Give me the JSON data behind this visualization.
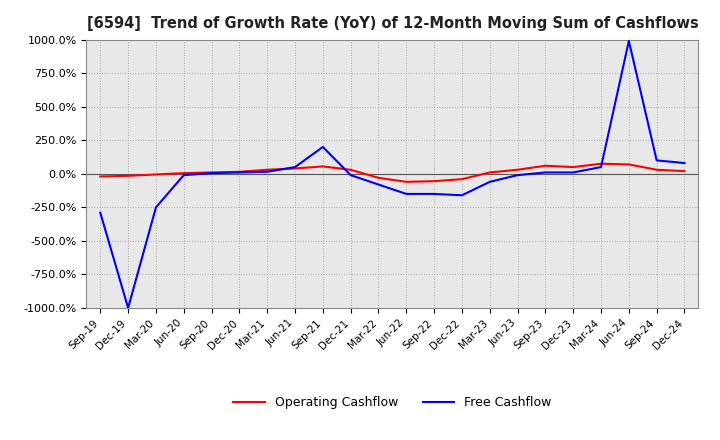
{
  "title": "[6594]  Trend of Growth Rate (YoY) of 12-Month Moving Sum of Cashflows",
  "ylim": [
    -1000,
    1000
  ],
  "yticks": [
    -1000,
    -750,
    -500,
    -250,
    0,
    250,
    500,
    750,
    1000
  ],
  "ytick_labels": [
    "-1000.0%",
    "-750.0%",
    "-500.0%",
    "-250.0%",
    "0.0%",
    "250.0%",
    "500.0%",
    "750.0%",
    "1000.0%"
  ],
  "background_color": "#ffffff",
  "plot_bg_color": "#e8e8e8",
  "grid_color": "#aaaaaa",
  "legend": [
    "Operating Cashflow",
    "Free Cashflow"
  ],
  "line_colors": [
    "#ff0000",
    "#0000ff"
  ],
  "x_dates": [
    "Sep-19",
    "Dec-19",
    "Mar-20",
    "Jun-20",
    "Sep-20",
    "Dec-20",
    "Mar-21",
    "Jun-21",
    "Sep-21",
    "Dec-21",
    "Mar-22",
    "Jun-22",
    "Sep-22",
    "Dec-22",
    "Mar-23",
    "Jun-23",
    "Sep-23",
    "Dec-23",
    "Mar-24",
    "Jun-24",
    "Sep-24",
    "Dec-24"
  ],
  "operating_cashflow": [
    -20,
    -15,
    -5,
    5,
    10,
    15,
    30,
    40,
    55,
    30,
    -30,
    -60,
    -55,
    -40,
    10,
    30,
    60,
    50,
    75,
    70,
    30,
    20
  ],
  "free_cashflow": [
    -290,
    -1000,
    -250,
    -10,
    5,
    10,
    15,
    50,
    200,
    -10,
    -80,
    -150,
    -150,
    -160,
    -60,
    -10,
    10,
    10,
    50,
    990,
    100,
    80
  ]
}
